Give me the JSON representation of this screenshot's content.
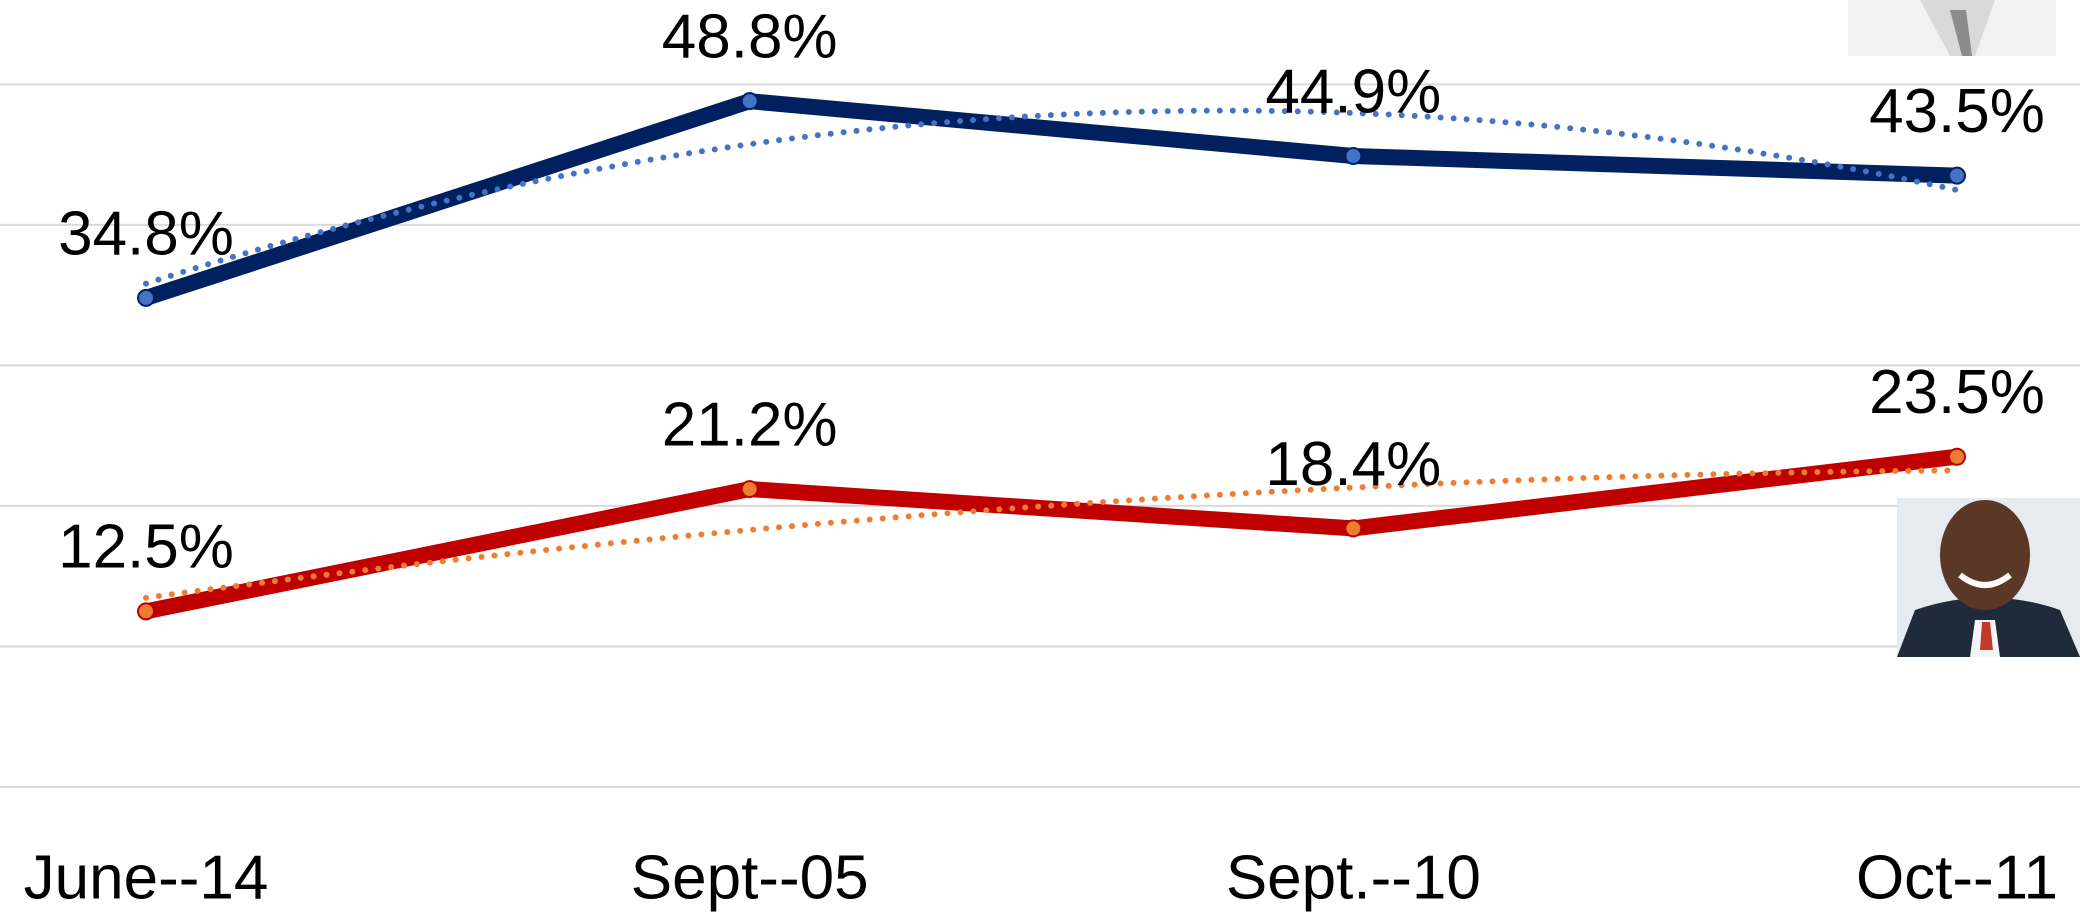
{
  "chart_data": {
    "type": "line",
    "categories": [
      "June--14",
      "Sept--05",
      "Sept.--10",
      "Oct--11"
    ],
    "series": [
      {
        "color": "#002060",
        "marker_color": "#4472c4",
        "trend_color": "#4472c4",
        "values": [
          34.8,
          48.8,
          44.9,
          43.5
        ],
        "value_labels": [
          "34.8%",
          "48.8%",
          "44.9%",
          "43.5%"
        ]
      },
      {
        "color": "#c00000",
        "marker_color": "#ed7d31",
        "trend_color": "#ed7d31",
        "values": [
          12.5,
          21.2,
          18.4,
          23.5
        ],
        "value_labels": [
          "12.5%",
          "21.2%",
          "18.4%",
          "23.5%"
        ]
      }
    ],
    "trendline": "polynomial-2",
    "ylim": [
      0,
      56
    ],
    "yticks": [
      0,
      10,
      20,
      30,
      40,
      50
    ],
    "grid": true
  }
}
